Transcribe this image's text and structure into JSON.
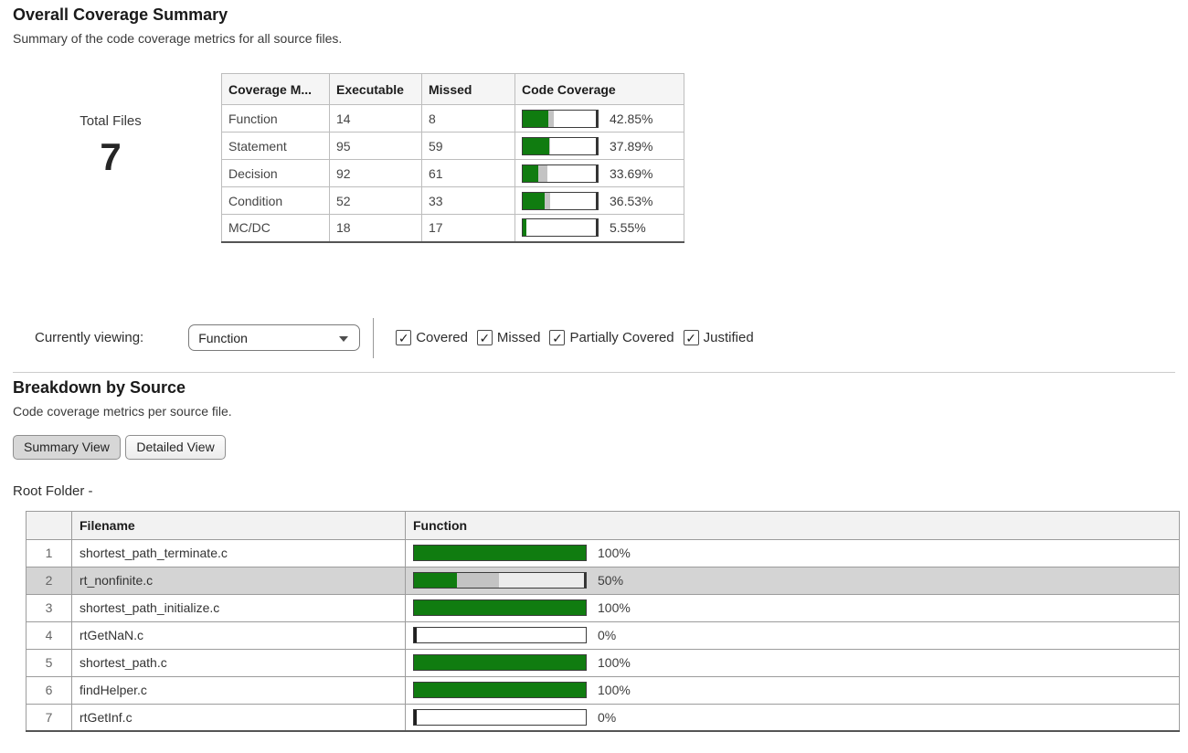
{
  "colors": {
    "covered_green": "#107c10",
    "justified_gray": "#c3c3c3",
    "row_highlight": "#d4d4d4"
  },
  "overall": {
    "title": "Overall Coverage Summary",
    "subtitle": "Summary of the code coverage metrics for all source files.",
    "total_files_label": "Total Files",
    "total_files_value": "7",
    "table": {
      "headers": [
        "Coverage M...",
        "Executable",
        "Missed",
        "Code Coverage"
      ],
      "rows": [
        {
          "metric": "Function",
          "executable": "14",
          "missed": "8",
          "pct_label": "42.85%",
          "covered_pct": 35,
          "justified_pct": 8
        },
        {
          "metric": "Statement",
          "executable": "95",
          "missed": "59",
          "pct_label": "37.89%",
          "covered_pct": 36,
          "justified_pct": 2
        },
        {
          "metric": "Decision",
          "executable": "92",
          "missed": "61",
          "pct_label": "33.69%",
          "covered_pct": 21,
          "justified_pct": 13
        },
        {
          "metric": "Condition",
          "executable": "52",
          "missed": "33",
          "pct_label": "36.53%",
          "covered_pct": 30,
          "justified_pct": 7
        },
        {
          "metric": "MC/DC",
          "executable": "18",
          "missed": "17",
          "pct_label": "5.55%",
          "covered_pct": 5.5,
          "justified_pct": 0
        }
      ]
    }
  },
  "controls": {
    "label": "Currently viewing:",
    "dropdown_value": "Function",
    "checkboxes": [
      {
        "label": "Covered",
        "checked": true
      },
      {
        "label": "Missed",
        "checked": true
      },
      {
        "label": "Partially Covered",
        "checked": true
      },
      {
        "label": "Justified",
        "checked": true
      }
    ]
  },
  "breakdown": {
    "title": "Breakdown by Source",
    "subtitle": "Code coverage metrics per source file.",
    "buttons": [
      {
        "label": "Summary View",
        "active": true
      },
      {
        "label": "Detailed View",
        "active": false
      }
    ],
    "root_label": "Root Folder -",
    "table": {
      "headers": [
        "",
        "Filename",
        "Function"
      ],
      "rows": [
        {
          "num": "1",
          "filename": "shortest_path_terminate.c",
          "pct_label": "100%",
          "covered_pct": 100,
          "justified_pct": 0,
          "highlighted": false
        },
        {
          "num": "2",
          "filename": "rt_nonfinite.c",
          "pct_label": "50%",
          "covered_pct": 25,
          "justified_pct": 25,
          "highlighted": true
        },
        {
          "num": "3",
          "filename": "shortest_path_initialize.c",
          "pct_label": "100%",
          "covered_pct": 100,
          "justified_pct": 0,
          "highlighted": false
        },
        {
          "num": "4",
          "filename": "rtGetNaN.c",
          "pct_label": "0%",
          "covered_pct": 0,
          "justified_pct": 0,
          "highlighted": false
        },
        {
          "num": "5",
          "filename": "shortest_path.c",
          "pct_label": "100%",
          "covered_pct": 100,
          "justified_pct": 0,
          "highlighted": false
        },
        {
          "num": "6",
          "filename": "findHelper.c",
          "pct_label": "100%",
          "covered_pct": 100,
          "justified_pct": 0,
          "highlighted": false
        },
        {
          "num": "7",
          "filename": "rtGetInf.c",
          "pct_label": "0%",
          "covered_pct": 0,
          "justified_pct": 0,
          "highlighted": false
        }
      ]
    }
  }
}
